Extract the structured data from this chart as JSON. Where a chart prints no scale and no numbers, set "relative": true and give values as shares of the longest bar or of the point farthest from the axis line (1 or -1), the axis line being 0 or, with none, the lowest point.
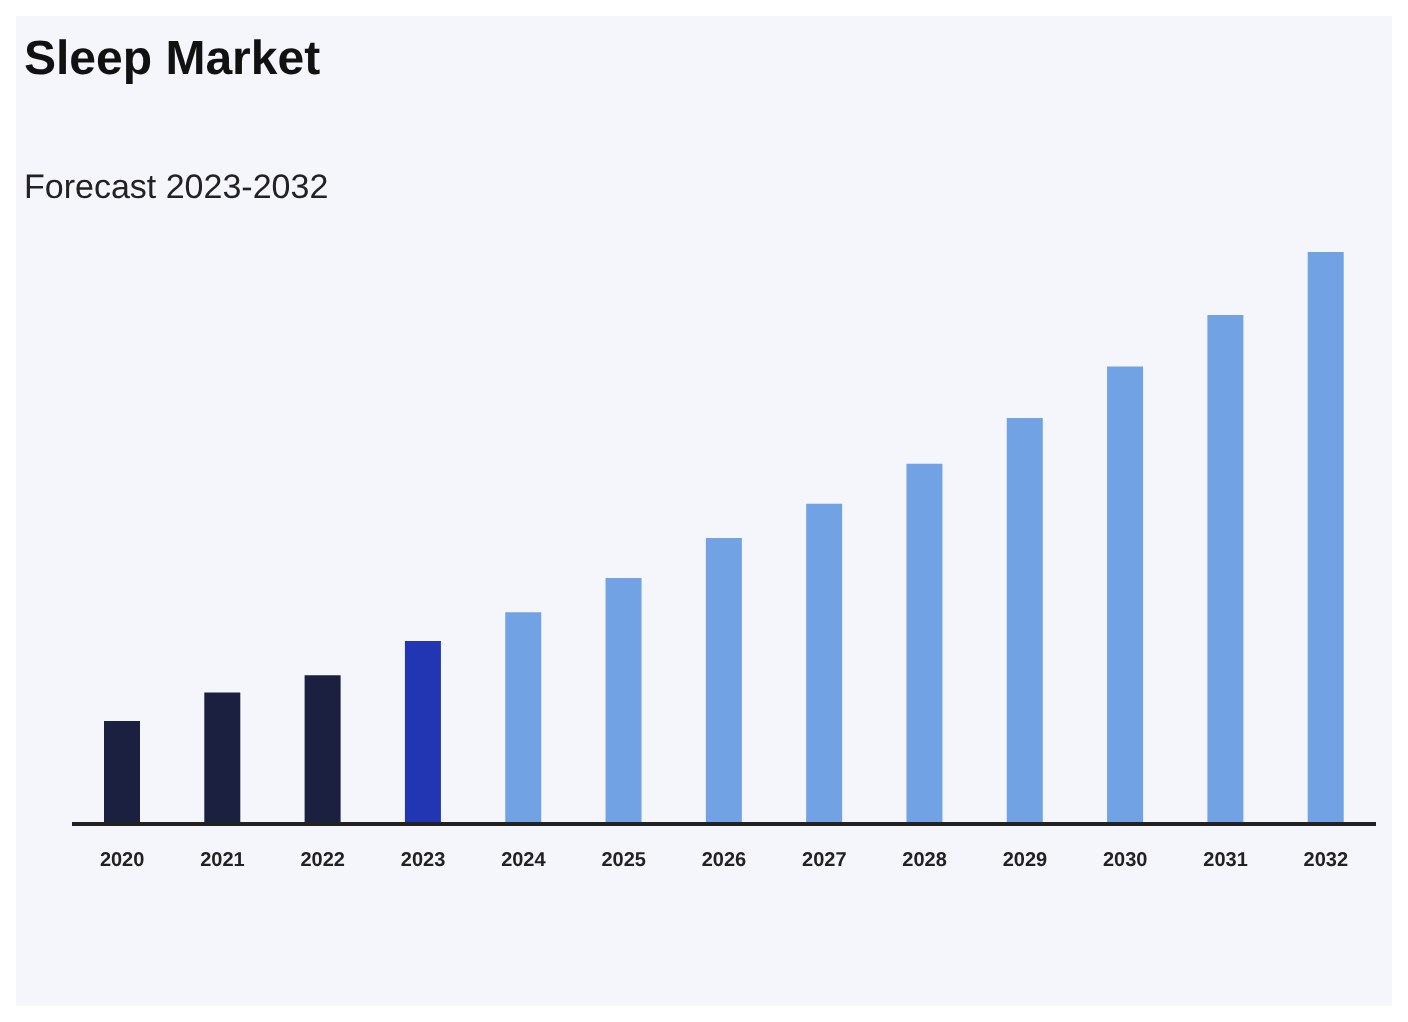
{
  "chart_data": {
    "type": "bar",
    "title": "Sleep Market",
    "subtitle": "Forecast 2023-2032",
    "relative": true,
    "categories": [
      "2020",
      "2021",
      "2022",
      "2023",
      "2024",
      "2025",
      "2026",
      "2027",
      "2028",
      "2029",
      "2030",
      "2031",
      "2032"
    ],
    "values": [
      0.18,
      0.23,
      0.26,
      0.32,
      0.37,
      0.43,
      0.5,
      0.56,
      0.63,
      0.71,
      0.8,
      0.89,
      1
    ],
    "colors": [
      "#1b2040",
      "#1b2040",
      "#1b2040",
      "#2236b4",
      "#71a2e3",
      "#71a2e3",
      "#71a2e3",
      "#71a2e3",
      "#71a2e3",
      "#71a2e3",
      "#71a2e3",
      "#71a2e3",
      "#71a2e3"
    ],
    "grid": false,
    "legend": false
  }
}
